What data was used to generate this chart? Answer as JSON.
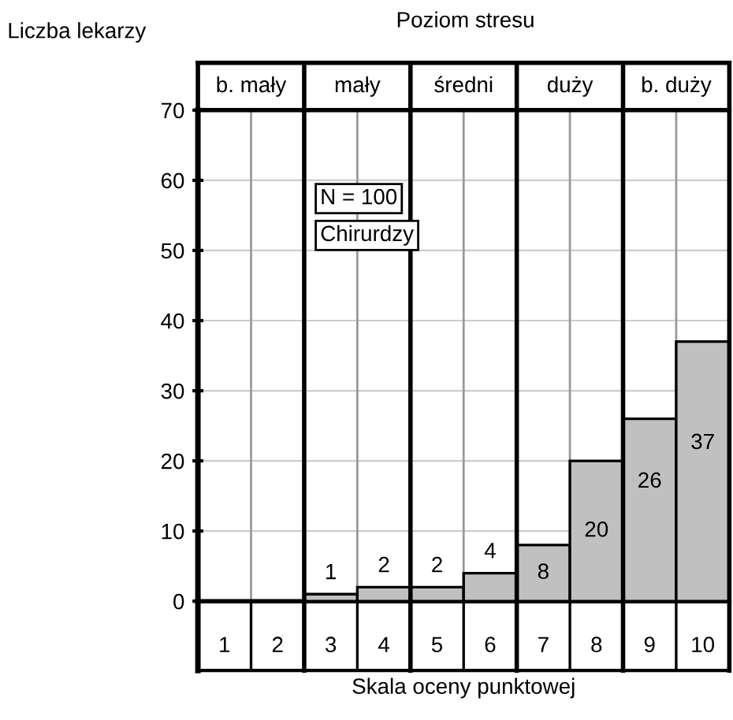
{
  "chart_data": {
    "type": "bar",
    "title": "Poziom stresu",
    "xlabel": "Skala oceny punktowej",
    "ylabel": "Liczba lekarzy",
    "x": [
      1,
      2,
      3,
      4,
      5,
      6,
      7,
      8,
      9,
      10
    ],
    "values": [
      0,
      0,
      1,
      2,
      2,
      4,
      8,
      20,
      26,
      37
    ],
    "value_labels": [
      null,
      null,
      "1",
      "2",
      "2",
      "4",
      "8",
      "20",
      "26",
      "37"
    ],
    "color": "#c0c0c0",
    "xlim": [
      0.5,
      10.5
    ],
    "xticks": [
      1,
      2,
      3,
      4,
      5,
      6,
      7,
      8,
      9,
      10
    ],
    "ylim": [
      0,
      70
    ],
    "yticks": [
      0,
      10,
      20,
      30,
      40,
      50,
      60,
      70
    ],
    "grid": "y",
    "annotations": [
      "b. mały",
      "mały",
      "średni",
      "duży",
      "b. duży",
      "N = 100",
      "Chirurdzy"
    ]
  }
}
